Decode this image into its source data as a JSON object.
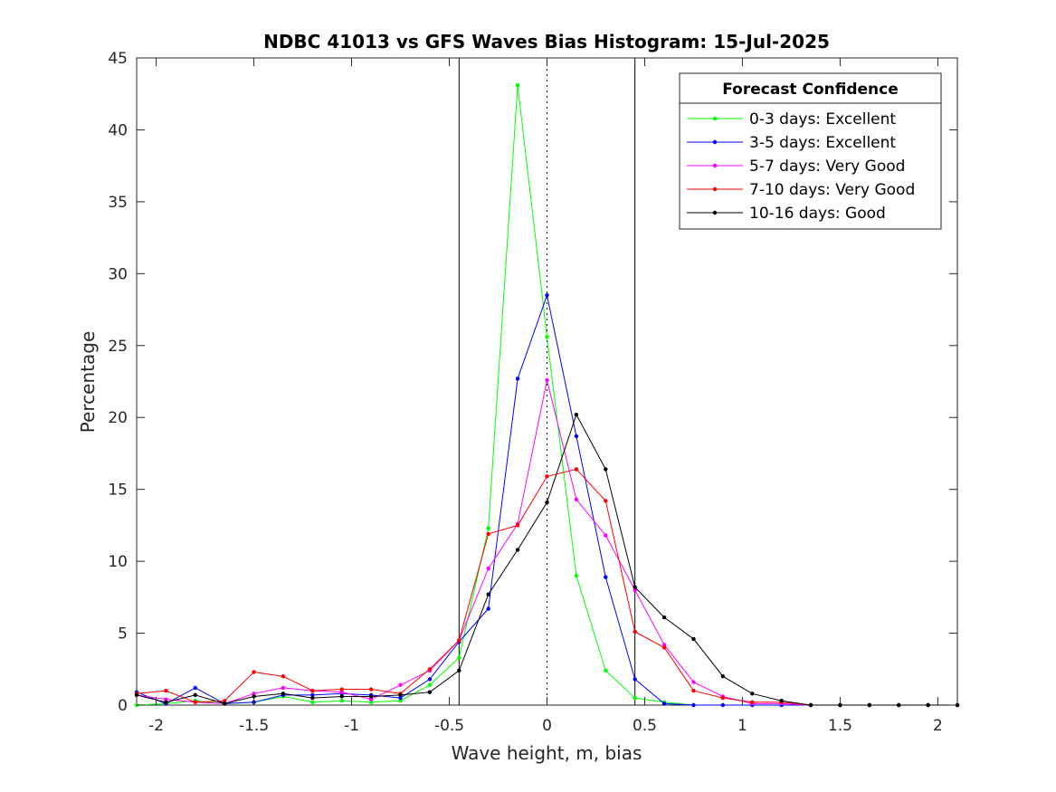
{
  "chart_data": {
    "type": "line",
    "title": "NDBC 41013 vs GFS Waves Bias Histogram: 15-Jul-2025",
    "xlabel": "Wave height, m, bias",
    "ylabel": "Percentage",
    "xlim": [
      -2.1,
      2.1
    ],
    "ylim": [
      0,
      45
    ],
    "xticks": [
      -2,
      -1.5,
      -1,
      -0.5,
      0,
      0.5,
      1,
      1.5,
      2
    ],
    "xtick_labels": [
      "-2",
      "-1.5",
      "-1",
      "-0.5",
      "0",
      "0.5",
      "1",
      "1.5",
      "2"
    ],
    "yticks": [
      0,
      5,
      10,
      15,
      20,
      25,
      30,
      35,
      40,
      45
    ],
    "ytick_labels": [
      "0",
      "5",
      "10",
      "15",
      "20",
      "25",
      "30",
      "35",
      "40",
      "45"
    ],
    "grid": false,
    "legend_title": "Forecast Confidence",
    "legend_position": "top-right",
    "reference_lines": {
      "solid": [
        -0.45,
        0.45
      ],
      "dotted": [
        0
      ]
    },
    "x": [
      -2.1,
      -1.95,
      -1.8,
      -1.65,
      -1.5,
      -1.35,
      -1.2,
      -1.05,
      -0.9,
      -0.75,
      -0.6,
      -0.45,
      -0.3,
      -0.15,
      0,
      0.15,
      0.3,
      0.45,
      0.6,
      0.75,
      0.9,
      1.05,
      1.2,
      1.35,
      1.5,
      1.65,
      1.8,
      1.95,
      2.1
    ],
    "series": [
      {
        "name": "0-3 days: Excellent",
        "color": "#00ff00",
        "values": [
          0,
          0.1,
          0.3,
          0.1,
          0.2,
          0.6,
          0.2,
          0.3,
          0.2,
          0.3,
          1.4,
          3.3,
          12.3,
          43.1,
          25.6,
          9.0,
          2.4,
          0.5,
          0.2,
          0,
          0,
          0,
          0,
          0,
          0,
          0,
          0,
          0,
          0
        ]
      },
      {
        "name": "3-5 days: Excellent",
        "color": "#0000ff",
        "values": [
          0.9,
          0.1,
          1.2,
          0.1,
          0.2,
          0.7,
          0.7,
          0.8,
          0.7,
          0.5,
          1.8,
          4.4,
          6.7,
          22.7,
          28.5,
          18.7,
          8.9,
          1.8,
          0.1,
          0,
          0,
          0,
          0,
          0,
          0,
          0,
          0,
          0,
          0
        ]
      },
      {
        "name": "5-7 days: Very Good",
        "color": "#ff00ff",
        "values": [
          0.7,
          0.4,
          0.2,
          0.1,
          0.8,
          1.2,
          1.0,
          0.9,
          0.4,
          1.4,
          2.4,
          4.5,
          9.5,
          12.6,
          22.6,
          14.3,
          11.8,
          8.0,
          4.2,
          1.6,
          0.6,
          0.1,
          0.1,
          0,
          0,
          0,
          0,
          0,
          0
        ]
      },
      {
        "name": "7-10 days: Very Good",
        "color": "#ff0000",
        "values": [
          0.8,
          1.0,
          0.2,
          0.3,
          2.3,
          2.0,
          1.0,
          1.1,
          1.1,
          0.8,
          2.5,
          4.5,
          11.9,
          12.5,
          15.9,
          16.4,
          14.2,
          5.1,
          4.0,
          1.0,
          0.5,
          0.2,
          0.2,
          0,
          0,
          0,
          0,
          0,
          0
        ]
      },
      {
        "name": "10-16 days: Good",
        "color": "#000000",
        "values": [
          0.7,
          0.2,
          0.7,
          0.1,
          0.6,
          0.8,
          0.5,
          0.6,
          0.6,
          0.7,
          0.9,
          2.4,
          7.7,
          10.8,
          14.1,
          20.2,
          16.4,
          8.2,
          6.1,
          4.6,
          2.0,
          0.8,
          0.3,
          0,
          0,
          0,
          0,
          0,
          0
        ]
      }
    ]
  }
}
